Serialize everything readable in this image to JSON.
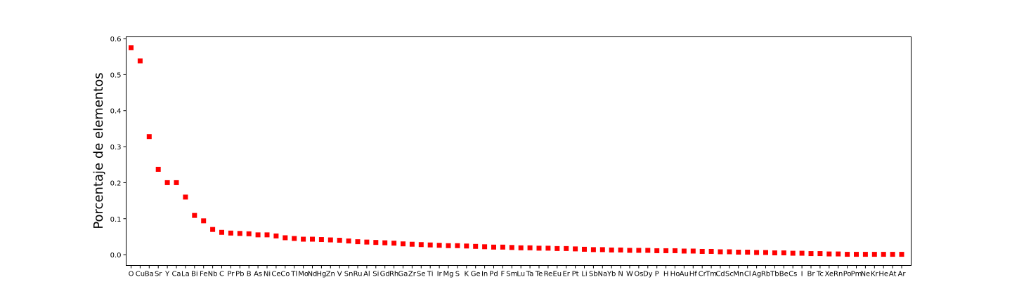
{
  "chart_data": {
    "type": "scatter",
    "title": "",
    "xlabel": "",
    "ylabel": "Porcentaje de elementos",
    "ylim": [
      -0.03,
      0.605
    ],
    "yticks": [
      0.0,
      0.1,
      0.2,
      0.3,
      0.4,
      0.5,
      0.6
    ],
    "ytick_labels": [
      "0.0",
      "0.1",
      "0.2",
      "0.3",
      "0.4",
      "0.5",
      "0.6"
    ],
    "marker": "square",
    "color": "#ff0000",
    "grid": false,
    "categories": [
      "O",
      "Cu",
      "Ba",
      "Sr",
      "Y",
      "Ca",
      "La",
      "Bi",
      "Fe",
      "Nb",
      "C",
      "Pr",
      "Pb",
      "B",
      "As",
      "Ni",
      "Ce",
      "Co",
      "Tl",
      "Mo",
      "Nd",
      "Hg",
      "Zn",
      "V",
      "Sn",
      "Ru",
      "Al",
      "Si",
      "Gd",
      "Rh",
      "Ga",
      "Zr",
      "Se",
      "Ti",
      "Ir",
      "Mg",
      "S",
      "K",
      "Ge",
      "In",
      "Pd",
      "F",
      "Sm",
      "Lu",
      "Ta",
      "Te",
      "Re",
      "Eu",
      "Er",
      "Pt",
      "Li",
      "Sb",
      "Na",
      "Yb",
      "N",
      "W",
      "Os",
      "Dy",
      "P",
      "H",
      "Ho",
      "Au",
      "Hf",
      "Cr",
      "Tm",
      "Cd",
      "Sc",
      "Mn",
      "Cl",
      "Ag",
      "Rb",
      "Tb",
      "Be",
      "Cs",
      "I",
      "Br",
      "Tc",
      "Xe",
      "Rn",
      "Po",
      "Pm",
      "Ne",
      "Kr",
      "He",
      "At",
      "Ar"
    ],
    "values": [
      0.575,
      0.538,
      0.328,
      0.237,
      0.2,
      0.2,
      0.16,
      0.109,
      0.094,
      0.07,
      0.062,
      0.06,
      0.059,
      0.058,
      0.055,
      0.055,
      0.052,
      0.047,
      0.045,
      0.043,
      0.043,
      0.042,
      0.041,
      0.04,
      0.038,
      0.036,
      0.035,
      0.034,
      0.033,
      0.032,
      0.03,
      0.029,
      0.028,
      0.027,
      0.026,
      0.025,
      0.025,
      0.024,
      0.023,
      0.022,
      0.021,
      0.021,
      0.02,
      0.019,
      0.019,
      0.018,
      0.018,
      0.017,
      0.017,
      0.016,
      0.015,
      0.014,
      0.014,
      0.013,
      0.013,
      0.012,
      0.012,
      0.012,
      0.011,
      0.011,
      0.011,
      0.01,
      0.01,
      0.009,
      0.009,
      0.008,
      0.008,
      0.007,
      0.007,
      0.006,
      0.006,
      0.005,
      0.005,
      0.004,
      0.004,
      0.003,
      0.003,
      0.002,
      0.002,
      0.001,
      0.001,
      0.001,
      0.001,
      0.001,
      0.001,
      0.001
    ]
  }
}
